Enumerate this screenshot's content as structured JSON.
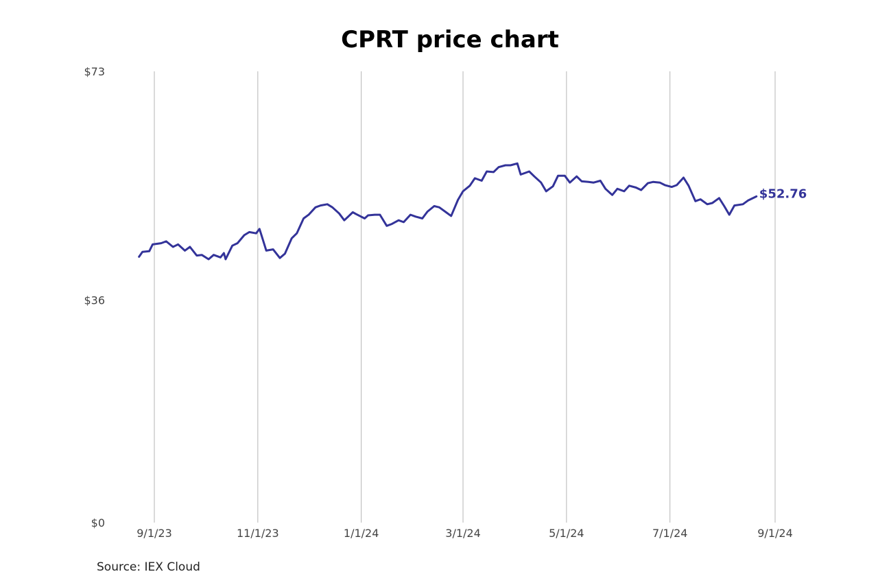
{
  "chart_data": {
    "type": "line",
    "title": "CPRT price chart",
    "source": "Source: IEX Cloud",
    "xlabel": "",
    "ylabel": "",
    "ylim": [
      0,
      73
    ],
    "y_ticks": [
      {
        "value": 0,
        "label": "$0"
      },
      {
        "value": 36,
        "label": "$36"
      },
      {
        "value": 73,
        "label": "$73"
      }
    ],
    "x_ticks": [
      {
        "date": "2023-09-01",
        "label": "9/1/23"
      },
      {
        "date": "2023-11-01",
        "label": "11/1/23"
      },
      {
        "date": "2024-01-01",
        "label": "1/1/24"
      },
      {
        "date": "2024-03-01",
        "label": "3/1/24"
      },
      {
        "date": "2024-05-01",
        "label": "5/1/24"
      },
      {
        "date": "2024-07-01",
        "label": "7/1/24"
      },
      {
        "date": "2024-09-01",
        "label": "9/1/24"
      }
    ],
    "grid": "vertical",
    "line_color": "#333399",
    "last_value_label": "$52.76",
    "series": [
      {
        "points": [
          [
            "2023-08-23",
            43.0
          ],
          [
            "2023-08-25",
            43.8
          ],
          [
            "2023-08-29",
            43.9
          ],
          [
            "2023-08-31",
            45.0
          ],
          [
            "2023-09-05",
            45.2
          ],
          [
            "2023-09-08",
            45.5
          ],
          [
            "2023-09-12",
            44.6
          ],
          [
            "2023-09-15",
            45.0
          ],
          [
            "2023-09-19",
            44.0
          ],
          [
            "2023-09-22",
            44.6
          ],
          [
            "2023-09-26",
            43.2
          ],
          [
            "2023-09-29",
            43.3
          ],
          [
            "2023-10-03",
            42.6
          ],
          [
            "2023-10-06",
            43.3
          ],
          [
            "2023-10-10",
            42.9
          ],
          [
            "2023-10-12",
            43.6
          ],
          [
            "2023-10-13",
            42.6
          ],
          [
            "2023-10-17",
            44.8
          ],
          [
            "2023-10-20",
            45.2
          ],
          [
            "2023-10-24",
            46.5
          ],
          [
            "2023-10-27",
            47.0
          ],
          [
            "2023-10-31",
            46.8
          ],
          [
            "2023-11-02",
            47.5
          ],
          [
            "2023-11-06",
            44.0
          ],
          [
            "2023-11-10",
            44.2
          ],
          [
            "2023-11-14",
            42.8
          ],
          [
            "2023-11-17",
            43.5
          ],
          [
            "2023-11-21",
            46.0
          ],
          [
            "2023-11-24",
            46.8
          ],
          [
            "2023-11-28",
            49.2
          ],
          [
            "2023-12-01",
            49.8
          ],
          [
            "2023-12-05",
            51.0
          ],
          [
            "2023-12-08",
            51.3
          ],
          [
            "2023-12-12",
            51.5
          ],
          [
            "2023-12-15",
            51.0
          ],
          [
            "2023-12-19",
            50.0
          ],
          [
            "2023-12-22",
            48.9
          ],
          [
            "2023-12-27",
            50.2
          ],
          [
            "2023-12-29",
            49.9
          ],
          [
            "2024-01-03",
            49.2
          ],
          [
            "2024-01-05",
            49.7
          ],
          [
            "2024-01-09",
            49.8
          ],
          [
            "2024-01-12",
            49.8
          ],
          [
            "2024-01-16",
            48.0
          ],
          [
            "2024-01-19",
            48.3
          ],
          [
            "2024-01-23",
            48.9
          ],
          [
            "2024-01-26",
            48.6
          ],
          [
            "2024-01-30",
            49.8
          ],
          [
            "2024-02-02",
            49.5
          ],
          [
            "2024-02-06",
            49.2
          ],
          [
            "2024-02-09",
            50.3
          ],
          [
            "2024-02-13",
            51.2
          ],
          [
            "2024-02-16",
            51.0
          ],
          [
            "2024-02-20",
            50.2
          ],
          [
            "2024-02-23",
            49.6
          ],
          [
            "2024-02-27",
            52.2
          ],
          [
            "2024-03-01",
            53.6
          ],
          [
            "2024-03-05",
            54.5
          ],
          [
            "2024-03-08",
            55.7
          ],
          [
            "2024-03-12",
            55.3
          ],
          [
            "2024-03-15",
            56.8
          ],
          [
            "2024-03-19",
            56.7
          ],
          [
            "2024-03-22",
            57.5
          ],
          [
            "2024-03-26",
            57.8
          ],
          [
            "2024-03-29",
            57.8
          ],
          [
            "2024-04-02",
            58.1
          ],
          [
            "2024-04-04",
            56.3
          ],
          [
            "2024-04-09",
            56.8
          ],
          [
            "2024-04-12",
            56.0
          ],
          [
            "2024-04-16",
            55.0
          ],
          [
            "2024-04-19",
            53.6
          ],
          [
            "2024-04-23",
            54.4
          ],
          [
            "2024-04-26",
            56.1
          ],
          [
            "2024-04-30",
            56.1
          ],
          [
            "2024-05-03",
            55.0
          ],
          [
            "2024-05-07",
            56.0
          ],
          [
            "2024-05-10",
            55.2
          ],
          [
            "2024-05-14",
            55.1
          ],
          [
            "2024-05-17",
            55.0
          ],
          [
            "2024-05-21",
            55.3
          ],
          [
            "2024-05-24",
            54.0
          ],
          [
            "2024-05-28",
            53.0
          ],
          [
            "2024-05-31",
            54.0
          ],
          [
            "2024-06-04",
            53.6
          ],
          [
            "2024-06-07",
            54.5
          ],
          [
            "2024-06-11",
            54.2
          ],
          [
            "2024-06-14",
            53.8
          ],
          [
            "2024-06-18",
            54.9
          ],
          [
            "2024-06-21",
            55.1
          ],
          [
            "2024-06-25",
            55.0
          ],
          [
            "2024-06-28",
            54.6
          ],
          [
            "2024-07-02",
            54.3
          ],
          [
            "2024-07-05",
            54.6
          ],
          [
            "2024-07-09",
            55.8
          ],
          [
            "2024-07-12",
            54.5
          ],
          [
            "2024-07-16",
            52.0
          ],
          [
            "2024-07-19",
            52.3
          ],
          [
            "2024-07-23",
            51.5
          ],
          [
            "2024-07-26",
            51.7
          ],
          [
            "2024-07-30",
            52.5
          ],
          [
            "2024-08-02",
            51.2
          ],
          [
            "2024-08-05",
            49.8
          ],
          [
            "2024-08-08",
            51.3
          ],
          [
            "2024-08-13",
            51.5
          ],
          [
            "2024-08-16",
            52.1
          ],
          [
            "2024-08-21",
            52.76
          ]
        ]
      }
    ]
  }
}
